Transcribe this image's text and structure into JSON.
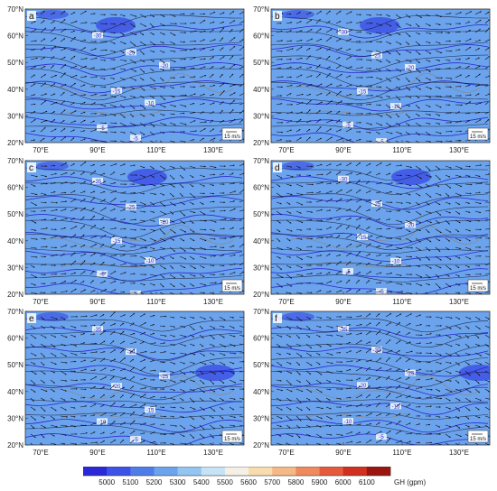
{
  "panels": [
    {
      "letter": "a",
      "contour_labels": [
        "-30",
        "-25",
        "-20",
        "-15",
        "-10",
        "-5",
        "-5"
      ],
      "scale_label": "15 m/s"
    },
    {
      "letter": "b",
      "contour_labels": [
        "-30",
        "-25",
        "-20",
        "-15",
        "-10",
        "-5",
        "-5"
      ],
      "scale_label": "15 m/s"
    },
    {
      "letter": "c",
      "contour_labels": [
        "-35",
        "-25",
        "-20",
        "-15",
        "-10",
        "-5",
        "-5"
      ],
      "scale_label": "15 m/s"
    },
    {
      "letter": "d",
      "contour_labels": [
        "-30",
        "-25",
        "-20",
        "-15",
        "-10",
        "-5",
        "-5"
      ],
      "scale_label": "15 m/s"
    },
    {
      "letter": "e",
      "contour_labels": [
        "-35",
        "-30",
        "-25",
        "-20",
        "-15",
        "-10",
        "-5"
      ],
      "scale_label": "15 m/s"
    },
    {
      "letter": "f",
      "contour_labels": [
        "-35",
        "-30",
        "-25",
        "-20",
        "-15",
        "-10",
        "-5"
      ],
      "scale_label": "15 m/s"
    }
  ],
  "axes": {
    "lat_labels": [
      "70°N",
      "60°N",
      "50°N",
      "40°N",
      "30°N",
      "20°N"
    ],
    "lon_labels": [
      "70°E",
      "90°E",
      "110°E",
      "130°E"
    ]
  },
  "colorbar": {
    "ticks": [
      "5000",
      "5100",
      "5200",
      "5300",
      "5400",
      "5500",
      "5600",
      "5700",
      "5800",
      "5900",
      "6000",
      "6100"
    ],
    "label": "GH (gpm)",
    "colors": [
      "#2b28d8",
      "#3d52e6",
      "#4f7de8",
      "#6ba3ec",
      "#93c5f0",
      "#c6e3f5",
      "#f5efe5",
      "#f7dcae",
      "#f5b887",
      "#ef8a5e",
      "#e65a3c",
      "#d03020",
      "#9a1410"
    ]
  },
  "colors": {
    "wind_vector": "#111111",
    "streamline": "#151530",
    "contour": "#2a2ad0",
    "terrain": "#8a8a8a"
  }
}
